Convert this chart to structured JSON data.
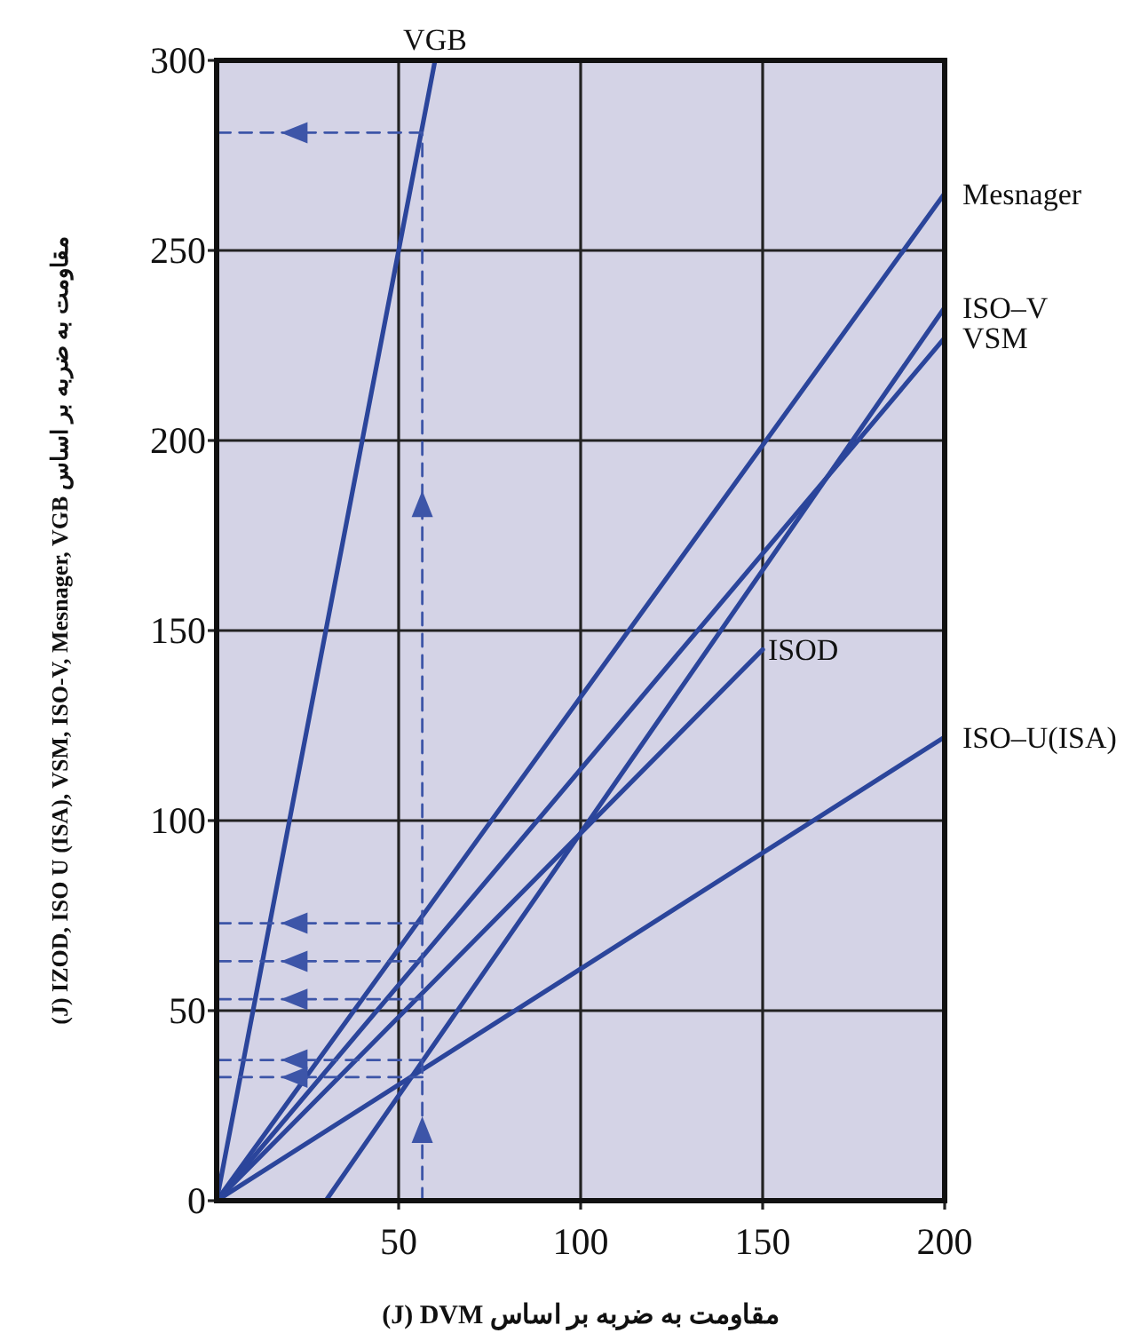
{
  "chart_data": {
    "type": "line",
    "xlabel": "(J) DVM  مقاومت به ضربه بر اساس",
    "ylabel": "(J) IZOD, ISO U (ISA), VSM, ISO-V, Mesnager, VGB  مقاومت به ضربه بر اساس",
    "xlim": [
      0,
      200
    ],
    "ylim": [
      0,
      300
    ],
    "xticks": [
      50,
      100,
      150,
      200
    ],
    "yticks": [
      0,
      50,
      100,
      150,
      200,
      250,
      300
    ],
    "grid": true,
    "series": [
      {
        "name": "VGB",
        "color": "#2b459b",
        "x": [
          0,
          60
        ],
        "values": [
          0,
          300
        ]
      },
      {
        "name": "Mesnager",
        "color": "#2b459b",
        "x": [
          0,
          200
        ],
        "values": [
          0,
          265
        ]
      },
      {
        "name": "ISO–V",
        "color": "#2b459b",
        "x": [
          30,
          200
        ],
        "values": [
          0,
          235
        ]
      },
      {
        "name": "VSM",
        "color": "#2b459b",
        "x": [
          0,
          200
        ],
        "values": [
          0,
          227
        ]
      },
      {
        "name": "ISOD",
        "color": "#2b459b",
        "x": [
          0,
          150
        ],
        "values": [
          0,
          145
        ]
      },
      {
        "name": "ISO–U(ISA)",
        "color": "#2b459b",
        "x": [
          0,
          200
        ],
        "values": [
          0,
          122
        ]
      },
      {
        "color": "#3d55a8",
        "line_style": "dashed",
        "x": [
          56.5,
          56.5
        ],
        "values": [
          0,
          281
        ]
      },
      {
        "color": "#3d55a8",
        "line_style": "dashed",
        "x": [
          56.5,
          0
        ],
        "values": [
          281,
          281
        ]
      },
      {
        "color": "#3d55a8",
        "line_style": "dashed",
        "x": [
          56.5,
          0
        ],
        "values": [
          73,
          73
        ]
      },
      {
        "color": "#3d55a8",
        "line_style": "dashed",
        "x": [
          56.5,
          0
        ],
        "values": [
          63,
          63
        ]
      },
      {
        "color": "#3d55a8",
        "line_style": "dashed",
        "x": [
          56.5,
          0
        ],
        "values": [
          53,
          53
        ]
      },
      {
        "color": "#3d55a8",
        "line_style": "dashed",
        "x": [
          56.5,
          0
        ],
        "values": [
          37,
          37
        ]
      },
      {
        "color": "#3d55a8",
        "line_style": "dashed",
        "x": [
          56.5,
          0
        ],
        "values": [
          32.5,
          32.5
        ]
      }
    ]
  }
}
